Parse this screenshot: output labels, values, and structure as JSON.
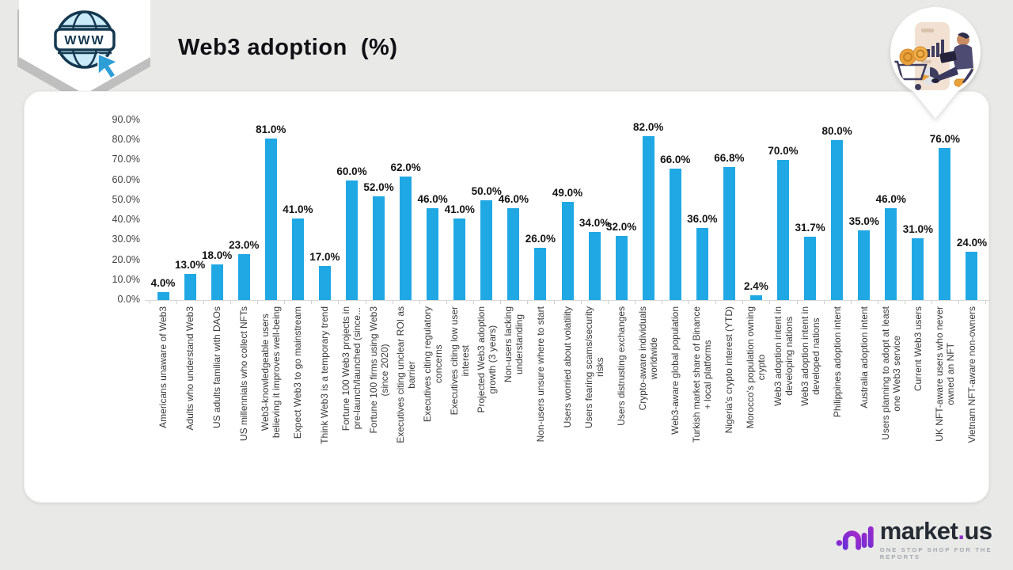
{
  "header": {
    "title": "Web3 adoption  (%)"
  },
  "badge": {
    "www": "WWW"
  },
  "footer": {
    "brand_left": "market",
    "brand_dot": ".",
    "brand_right": "us",
    "tagline": "ONE STOP SHOP FOR THE REPORTS"
  },
  "chart_data": {
    "type": "bar",
    "title": "Web3 adoption (%)",
    "xlabel": "",
    "ylabel": "",
    "ylim": [
      0,
      90
    ],
    "ytick_step": 10,
    "grid": false,
    "legend": "none",
    "bar_color": "#1FA8E4",
    "categories": [
      "Americans unaware of Web3",
      "Adults who understand Web3",
      "US adults familiar with DAOs",
      "US millennials who collect NFTs",
      "Web3-knowledgeable users\nbelieving it improves well-being",
      "Expect Web3 to go mainstream",
      "Think Web3 is a temporary trend",
      "Fortune 100 Web3 projects in\npre-launch/launched (since...",
      "Fortune 100 firms using Web3\n(since 2020)",
      "Executives citing unclear ROI as\nbarrier",
      "Executives citing regulatory\nconcerns",
      "Executives citing low user\ninterest",
      "Projected Web3 adoption\ngrowth (3 years)",
      "Non-users lacking\nunderstanding",
      "Non-users unsure where to start",
      "Users worried about volatility",
      "Users fearing scams/security\nrisks",
      "Users distrusting exchanges",
      "Crypto-aware individuals\nworldwide",
      "Web3-aware global population",
      "Turkish market share of Binance\n+ local platforms",
      "Nigeria's crypto interest (YTD)",
      "Morocco's population owning\ncrypto",
      "Web3 adoption intent in\ndeveloping nations",
      "Web3 adoption intent in\ndeveloped nations",
      "Philippines adoption intent",
      "Australia adoption intent",
      "Users planning to adopt at least\none Web3 service",
      "Current Web3 users",
      "UK NFT-aware users who never\nowned an NFT",
      "Vietnam NFT-aware non-owners"
    ],
    "values": [
      4.0,
      13.0,
      18.0,
      23.0,
      81.0,
      41.0,
      17.0,
      60.0,
      52.0,
      62.0,
      46.0,
      41.0,
      50.0,
      46.0,
      26.0,
      49.0,
      34.0,
      32.0,
      82.0,
      66.0,
      36.0,
      66.8,
      2.4,
      70.0,
      31.7,
      80.0,
      35.0,
      46.0,
      31.0,
      76.0,
      24.0
    ]
  }
}
